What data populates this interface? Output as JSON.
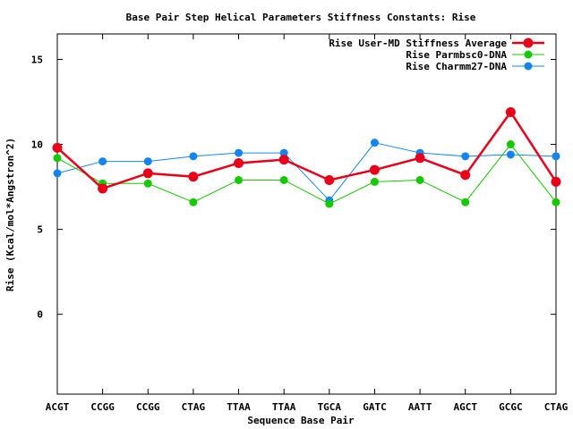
{
  "chart_data": {
    "type": "line",
    "title": "Base Pair Step Helical Parameters Stiffness Constants: Rise",
    "xlabel": "Sequence Base Pair",
    "ylabel": "Rise (Kcal/mol*Angstron^2)",
    "categories": [
      "ACGT",
      "CCGG",
      "CCGG",
      "CTAG",
      "TTAA",
      "TTAA",
      "TGCA",
      "GATC",
      "AATT",
      "AGCT",
      "GCGC",
      "CTAG"
    ],
    "ylim": [
      -4.7,
      16.5
    ],
    "yticks": [
      0,
      5,
      10,
      15
    ],
    "grid": false,
    "legend_position": "top-right",
    "series": [
      {
        "name": "Rise User-MD Stiffness Average",
        "color": "#e8001a",
        "values": [
          9.8,
          7.4,
          8.3,
          8.1,
          8.9,
          9.1,
          7.9,
          8.5,
          9.2,
          8.2,
          11.9,
          7.8
        ]
      },
      {
        "name": "Rise Parmbsc0-DNA",
        "color": "#16c800",
        "values": [
          9.2,
          7.7,
          7.7,
          6.6,
          7.9,
          7.9,
          6.5,
          7.8,
          7.9,
          6.6,
          10.0,
          6.6
        ]
      },
      {
        "name": "Rise Charmm27-DNA",
        "color": "#1485f0",
        "values": [
          8.3,
          9.0,
          9.0,
          9.3,
          9.5,
          9.5,
          6.7,
          10.1,
          9.5,
          9.3,
          9.4,
          9.3
        ]
      }
    ]
  }
}
